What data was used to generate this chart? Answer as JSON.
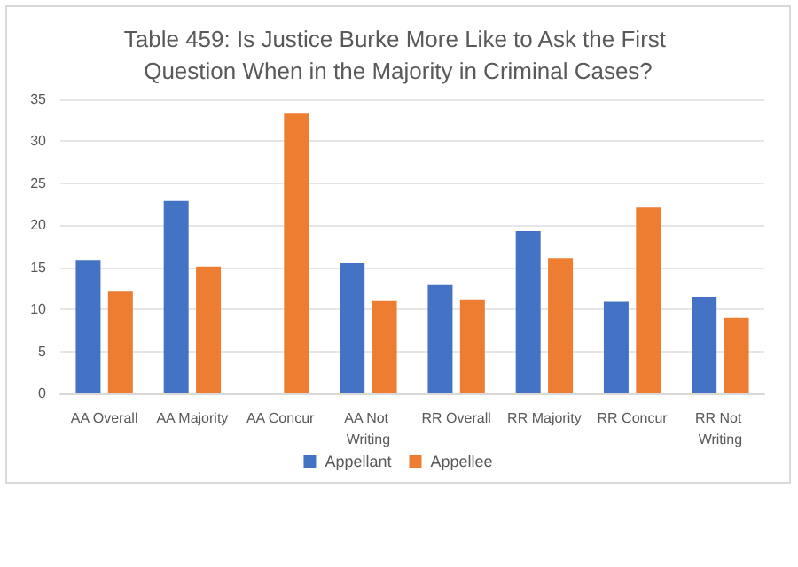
{
  "chart_data": {
    "type": "bar",
    "title": "Table 459: Is Justice Burke More Like to Ask the First Question When in the Majority in Criminal Cases?",
    "categories": [
      "AA Overall",
      "AA Majority",
      "AA Concur",
      "AA Not Writing",
      "RR Overall",
      "RR Majority",
      "RR Concur",
      "RR Not Writing"
    ],
    "series": [
      {
        "name": "Appellant",
        "color": "#4472c4",
        "values": [
          15.8,
          22.9,
          0,
          15.5,
          12.9,
          19.3,
          10.9,
          11.5
        ]
      },
      {
        "name": "Appellee",
        "color": "#ed7d31",
        "values": [
          12.1,
          15.1,
          33.3,
          11.0,
          11.1,
          16.1,
          22.1,
          9.0
        ]
      }
    ],
    "ylim": [
      0,
      35
    ],
    "yticks": [
      0,
      5,
      10,
      15,
      20,
      25,
      30,
      35
    ],
    "grid": "y",
    "legend": "bottom"
  }
}
